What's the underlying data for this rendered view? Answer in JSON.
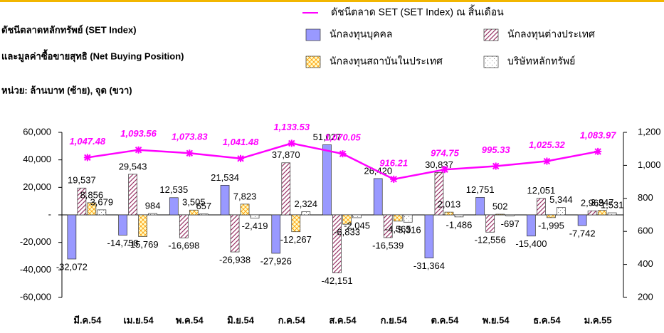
{
  "chart_data": {
    "type": "bar",
    "title": "ดัชนีตลาดหลักทรัพย์ (SET Index)",
    "subtitle": "และมูลค่าซื้อขายสุทธิ (Net Buying Position)",
    "annotation": "หน่วย: ล้านบาท (ซ้าย), จุด (ขวา)",
    "categories": [
      "มี.ค.54",
      "เม.ย.54",
      "พ.ค.54",
      "มิ.ย.54",
      "ก.ค.54",
      "ส.ค.54",
      "ก.ย.54",
      "ต.ค.54",
      "พ.ย.54",
      "ธ.ค.54",
      "ม.ค.55"
    ],
    "series": [
      {
        "name": "นักลงทุนบุคคล",
        "color": "#9999ff",
        "values": [
          -32072,
          -14758,
          12535,
          21534,
          -27926,
          51027,
          26420,
          -31364,
          12751,
          -15400,
          -7742
        ],
        "value_labels": [
          "-32,072",
          "-14,758",
          "12,535",
          "21,534",
          "-27,926",
          "51,027",
          "26,420",
          "-31,364",
          "12,751",
          "-15,400",
          "-7,742"
        ]
      },
      {
        "name": "นักลงทุนต่างประเทศ",
        "color": "#993366",
        "values": [
          19537,
          29543,
          -16698,
          -26938,
          37870,
          -42151,
          -16539,
          30837,
          -12556,
          12051,
          2965
        ],
        "value_labels": [
          "19,537",
          "29,543",
          "-16,698",
          "-26,938",
          "37,870",
          "-42,151",
          "-16,539",
          "30,837",
          "-12,556",
          "12,051",
          "2,965"
        ]
      },
      {
        "name": "นักลงทุนสถาบันในประเทศ",
        "color": "#ff9900",
        "values": [
          8856,
          -15769,
          3505,
          7823,
          -12267,
          -6833,
          -4565,
          2013,
          502,
          -1995,
          3247
        ],
        "value_labels": [
          "8,856",
          "-15,769",
          "3,505",
          "7,823",
          "-12,267",
          "-6,833",
          "-4,565",
          "2,013",
          "502",
          "-1,995",
          "3,247"
        ]
      },
      {
        "name": "บริษัทหลักทรัพย์",
        "color": "#808080",
        "values": [
          3679,
          984,
          657,
          -2419,
          2324,
          -2045,
          -5316,
          -1486,
          -697,
          5344,
          1531
        ],
        "value_labels": [
          "3,679",
          "984",
          "657",
          "-2,419",
          "2,324",
          "-2,045",
          "-5,316",
          "-1,486",
          "-697",
          "5,344",
          "1,531"
        ]
      },
      {
        "name": "ดัชนีตลาด SET (SET Index) ณ สิ้นเดือน",
        "color": "#ff00ff",
        "axis": "y2",
        "values": [
          1047.48,
          1093.56,
          1073.83,
          1041.48,
          1133.53,
          1070.05,
          916.21,
          974.75,
          995.33,
          1025.32,
          1083.97
        ],
        "value_labels": [
          "1,047.48",
          "1,093.56",
          "1,073.83",
          "1,041.48",
          "1,133.53",
          "1,070.05",
          "916.21",
          "974.75",
          "995.33",
          "1,025.32",
          "1,083.97"
        ]
      }
    ],
    "ylim": [
      -60000,
      60000
    ],
    "yticks": [
      {
        "value": -60000,
        "label": "-60,000"
      },
      {
        "value": -40000,
        "label": "-40,000"
      },
      {
        "value": -20000,
        "label": "-20,000"
      },
      {
        "value": 0,
        "label": "-"
      },
      {
        "value": 20000,
        "label": "20,000"
      },
      {
        "value": 40000,
        "label": "40,000"
      },
      {
        "value": 60000,
        "label": "60,000"
      }
    ],
    "y2lim": [
      200,
      1200
    ],
    "y2ticks": [
      200,
      400,
      600,
      800,
      {
        "value": 1000,
        "label": "1,000"
      },
      {
        "value": 1200,
        "label": "1,200"
      }
    ]
  }
}
